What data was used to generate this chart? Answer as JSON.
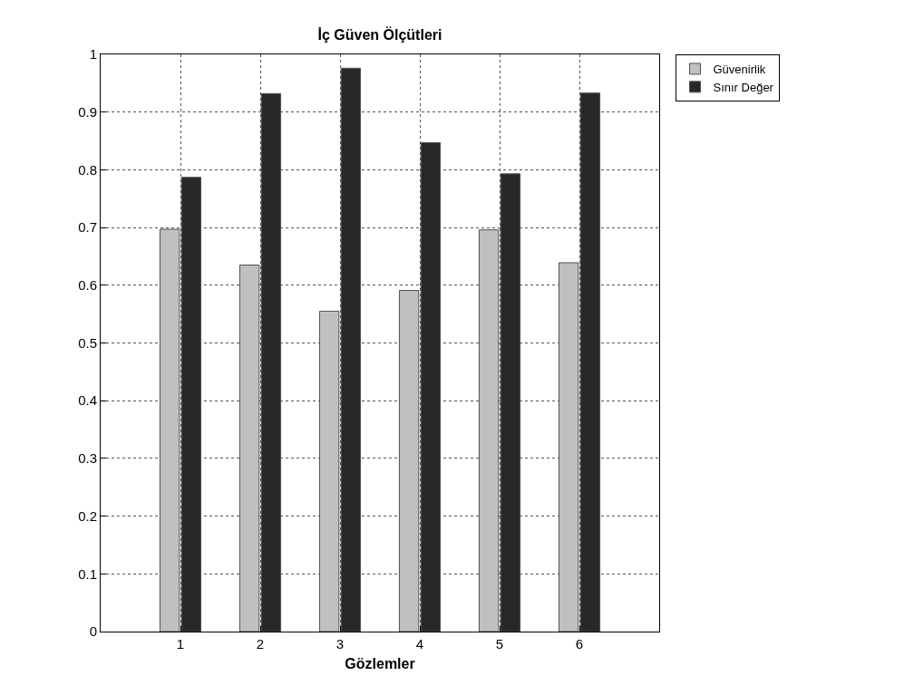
{
  "chart_data": {
    "type": "bar",
    "title": "İç Güven Ölçütleri",
    "xlabel": "Gözlemler",
    "x": [
      1,
      2,
      3,
      4,
      5,
      6
    ],
    "series": [
      {
        "name": "Güvenirlik",
        "color": "#c0c0c0",
        "values": [
          0.697,
          0.635,
          0.555,
          0.591,
          0.696,
          0.639
        ]
      },
      {
        "name": "Sınır Değer",
        "color": "#282828",
        "values": [
          0.787,
          0.932,
          0.976,
          0.847,
          0.793,
          0.933
        ]
      }
    ],
    "xlim": [
      0,
      7
    ],
    "xticks": [
      1,
      2,
      3,
      4,
      5,
      6
    ],
    "ylim": [
      0,
      1
    ],
    "yticks": [
      0,
      0.1,
      0.2,
      0.3,
      0.4,
      0.5,
      0.6,
      0.7,
      0.8,
      0.9,
      1
    ],
    "grid": true,
    "legend": "top right"
  }
}
